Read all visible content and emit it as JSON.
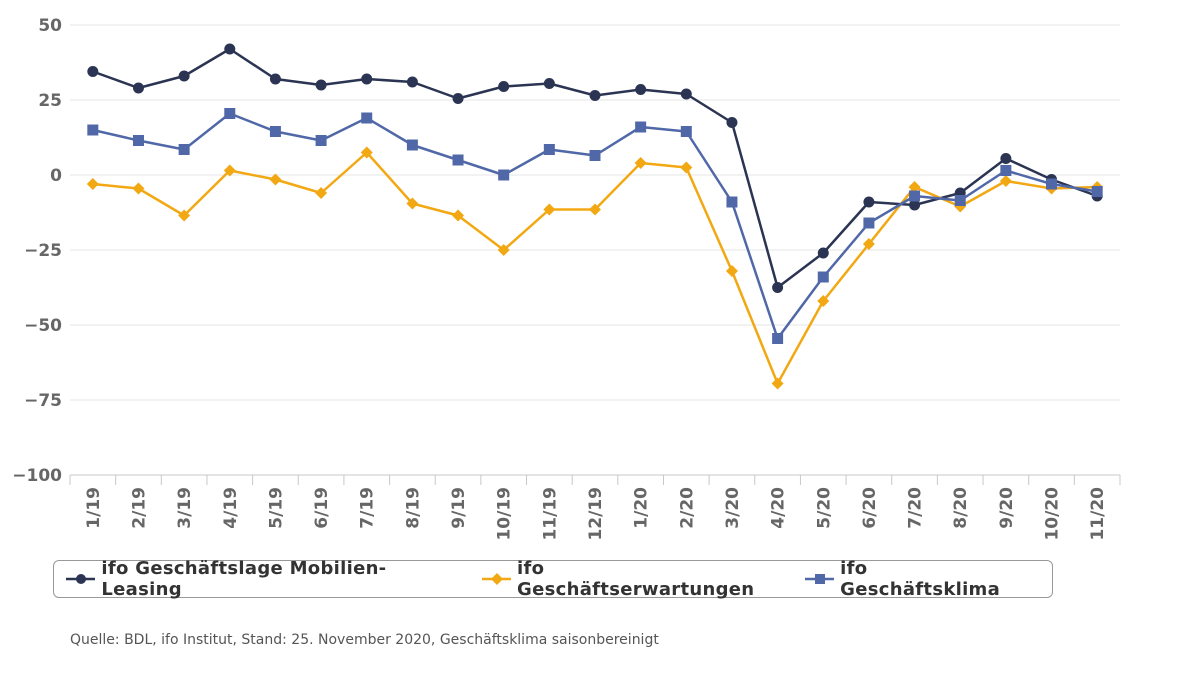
{
  "chart_data": {
    "type": "line",
    "categories": [
      "1/19",
      "2/19",
      "3/19",
      "4/19",
      "5/19",
      "6/19",
      "7/19",
      "8/19",
      "9/19",
      "10/19",
      "11/19",
      "12/19",
      "1/20",
      "2/20",
      "3/20",
      "4/20",
      "5/20",
      "6/20",
      "7/20",
      "8/20",
      "9/20",
      "10/20",
      "11/20"
    ],
    "ylim": [
      -100,
      50
    ],
    "yticks": [
      50,
      25,
      0,
      -25,
      -50,
      -75,
      -100
    ],
    "ytick_labels": [
      "50",
      "25",
      "0",
      "−25",
      "−50",
      "−75",
      "−100"
    ],
    "grid": true,
    "legend_position": "bottom",
    "series": [
      {
        "name": "ifo Geschäftslage Mobilien-Leasing",
        "color": "#2b3452",
        "marker": "circle",
        "values": [
          34.5,
          29,
          33,
          42,
          32,
          30,
          32,
          31,
          25.5,
          29.5,
          30.5,
          26.5,
          28.5,
          27,
          17.5,
          -37.5,
          -26,
          -9,
          -10,
          -6,
          5.5,
          -1.5,
          -7
        ]
      },
      {
        "name": "ifo Geschäftserwartungen",
        "color": "#f2a812",
        "marker": "diamond",
        "values": [
          -3,
          -4.5,
          -13.5,
          1.5,
          -1.5,
          -6,
          7.5,
          -9.5,
          -13.5,
          -25,
          -11.5,
          -11.5,
          4,
          2.5,
          -32,
          -69.5,
          -42,
          -23,
          -4,
          -10.5,
          -2,
          -4.5,
          -4
        ]
      },
      {
        "name": "ifo Geschäftsklima",
        "color": "#5068a8",
        "marker": "square",
        "values": [
          15,
          11.5,
          8.5,
          20.5,
          14.5,
          11.5,
          19,
          10,
          5,
          0,
          8.5,
          6.5,
          16,
          14.5,
          -9,
          -54.5,
          -34,
          -16,
          -7,
          -8.5,
          1.5,
          -3,
          -5.5
        ]
      }
    ]
  },
  "source_text": "Quelle: BDL, ifo Institut, Stand: 25. November 2020, Geschäftsklima saisonbereinigt"
}
